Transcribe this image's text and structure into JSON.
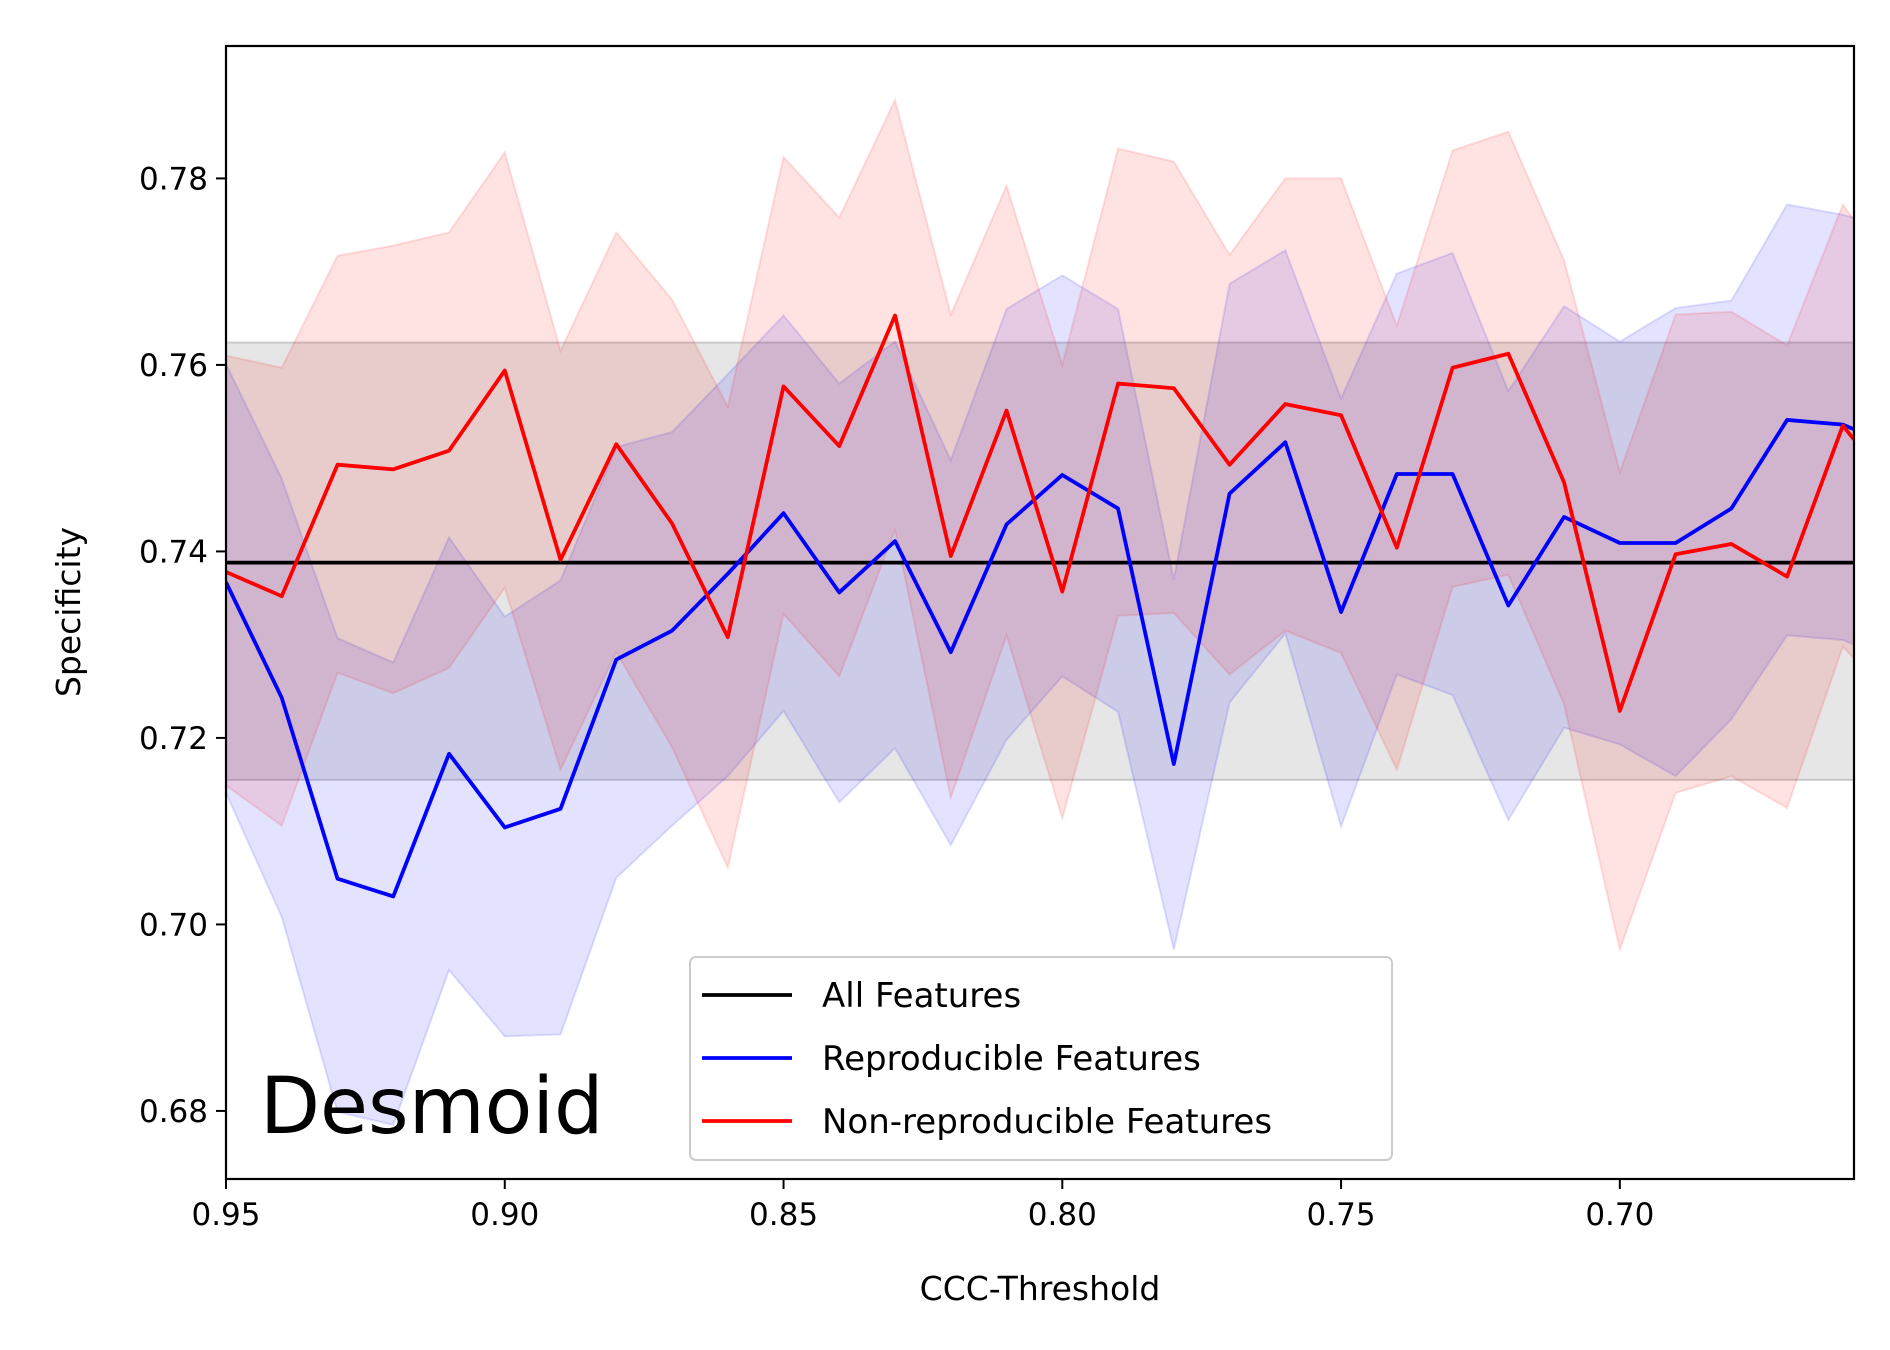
{
  "chart_data": {
    "type": "line",
    "xlabel": "CCC-Threshold",
    "ylabel": "Specificity",
    "annotation": "Desmoid",
    "xlim": [
      0.95,
      0.658
    ],
    "ylim": [
      0.6727,
      0.7942
    ],
    "x_ticks": [
      "0.95",
      "0.90",
      "0.85",
      "0.80",
      "0.75",
      "0.70"
    ],
    "y_ticks": [
      "0.68",
      "0.70",
      "0.72",
      "0.74",
      "0.76",
      "0.78"
    ],
    "x_tick_values": [
      0.95,
      0.9,
      0.85,
      0.8,
      0.75,
      0.7
    ],
    "y_tick_values": [
      0.68,
      0.7,
      0.72,
      0.74,
      0.76,
      0.78
    ],
    "grid": false,
    "legend_position": "bottom-center",
    "x": [
      0.95,
      0.94,
      0.93,
      0.92,
      0.91,
      0.9,
      0.89,
      0.88,
      0.87,
      0.86,
      0.85,
      0.84,
      0.83,
      0.82,
      0.81,
      0.8,
      0.79,
      0.78,
      0.77,
      0.76,
      0.75,
      0.74,
      0.73,
      0.72,
      0.71,
      0.7,
      0.69,
      0.68,
      0.67,
      0.66,
      0.658
    ],
    "series": [
      {
        "name": "All Features",
        "color": "#000000",
        "values": [
          0.7388,
          0.7388,
          0.7388,
          0.7388,
          0.7388,
          0.7388,
          0.7388,
          0.7388,
          0.7388,
          0.7388,
          0.7388,
          0.7388,
          0.7388,
          0.7388,
          0.7388,
          0.7388,
          0.7388,
          0.7388,
          0.7388,
          0.7388,
          0.7388,
          0.7388,
          0.7388,
          0.7388,
          0.7388,
          0.7388,
          0.7388,
          0.7388,
          0.7388,
          0.7388,
          0.7388
        ],
        "band_lower": [
          0.7155,
          0.7155,
          0.7155,
          0.7155,
          0.7155,
          0.7155,
          0.7155,
          0.7155,
          0.7155,
          0.7155,
          0.7155,
          0.7155,
          0.7155,
          0.7155,
          0.7155,
          0.7155,
          0.7155,
          0.7155,
          0.7155,
          0.7155,
          0.7155,
          0.7155,
          0.7155,
          0.7155,
          0.7155,
          0.7155,
          0.7155,
          0.7155,
          0.7155,
          0.7155,
          0.7155
        ],
        "band_upper": [
          0.7624,
          0.7624,
          0.7624,
          0.7624,
          0.7624,
          0.7624,
          0.7624,
          0.7624,
          0.7624,
          0.7624,
          0.7624,
          0.7624,
          0.7624,
          0.7624,
          0.7624,
          0.7624,
          0.7624,
          0.7624,
          0.7624,
          0.7624,
          0.7624,
          0.7624,
          0.7624,
          0.7624,
          0.7624,
          0.7624,
          0.7624,
          0.7624,
          0.7624,
          0.7624,
          0.7624
        ],
        "band_color": "#808080"
      },
      {
        "name": "Reproducible Features",
        "color": "#0000ff",
        "values": [
          0.7367,
          0.7243,
          0.7049,
          0.703,
          0.7183,
          0.7104,
          0.7124,
          0.7284,
          0.7315,
          0.7376,
          0.7441,
          0.7356,
          0.7411,
          0.7292,
          0.7429,
          0.7482,
          0.7446,
          0.7172,
          0.7462,
          0.7517,
          0.7335,
          0.7483,
          0.7483,
          0.7342,
          0.7437,
          0.7409,
          0.7409,
          0.7446,
          0.7541,
          0.7536,
          0.7531
        ],
        "band_lower": [
          0.7141,
          0.7008,
          0.6799,
          0.6785,
          0.6951,
          0.688,
          0.6882,
          0.705,
          0.7106,
          0.7159,
          0.7229,
          0.7131,
          0.7189,
          0.7085,
          0.7198,
          0.7266,
          0.7228,
          0.6973,
          0.7238,
          0.7312,
          0.7105,
          0.7268,
          0.7246,
          0.7112,
          0.7211,
          0.7193,
          0.7159,
          0.722,
          0.731,
          0.7305,
          0.73
        ],
        "band_upper": [
          0.7601,
          0.7478,
          0.7307,
          0.7281,
          0.7415,
          0.733,
          0.7369,
          0.7512,
          0.7528,
          0.759,
          0.7653,
          0.758,
          0.7625,
          0.7498,
          0.766,
          0.7696,
          0.766,
          0.737,
          0.7687,
          0.7723,
          0.7564,
          0.7698,
          0.772,
          0.7572,
          0.7663,
          0.7625,
          0.7661,
          0.7669,
          0.7772,
          0.7761,
          0.7758
        ],
        "band_color": "#0000ff"
      },
      {
        "name": "Non-reproducible Features",
        "color": "#ff0000",
        "values": [
          0.7378,
          0.7352,
          0.7493,
          0.7488,
          0.7508,
          0.7594,
          0.7391,
          0.7515,
          0.743,
          0.7308,
          0.7577,
          0.7513,
          0.7653,
          0.7395,
          0.7551,
          0.7357,
          0.758,
          0.7575,
          0.7493,
          0.7558,
          0.7546,
          0.7404,
          0.7597,
          0.7612,
          0.7474,
          0.7229,
          0.7397,
          0.7408,
          0.7373,
          0.7535,
          0.752
        ],
        "band_lower": [
          0.7149,
          0.7106,
          0.727,
          0.7248,
          0.7275,
          0.7361,
          0.7166,
          0.7292,
          0.719,
          0.7061,
          0.7333,
          0.7266,
          0.7423,
          0.7136,
          0.731,
          0.7114,
          0.7331,
          0.7334,
          0.7268,
          0.7315,
          0.7291,
          0.7166,
          0.7362,
          0.7375,
          0.7236,
          0.6973,
          0.7141,
          0.7159,
          0.7125,
          0.7298,
          0.7285
        ],
        "band_upper": [
          0.761,
          0.7597,
          0.7717,
          0.7728,
          0.7742,
          0.7828,
          0.7615,
          0.7742,
          0.767,
          0.7555,
          0.7823,
          0.7758,
          0.7884,
          0.7654,
          0.7792,
          0.76,
          0.7832,
          0.7818,
          0.7718,
          0.78,
          0.78,
          0.7642,
          0.783,
          0.785,
          0.7712,
          0.7485,
          0.7654,
          0.7657,
          0.7621,
          0.7772,
          0.7755
        ],
        "band_color": "#ff0000"
      }
    ]
  }
}
